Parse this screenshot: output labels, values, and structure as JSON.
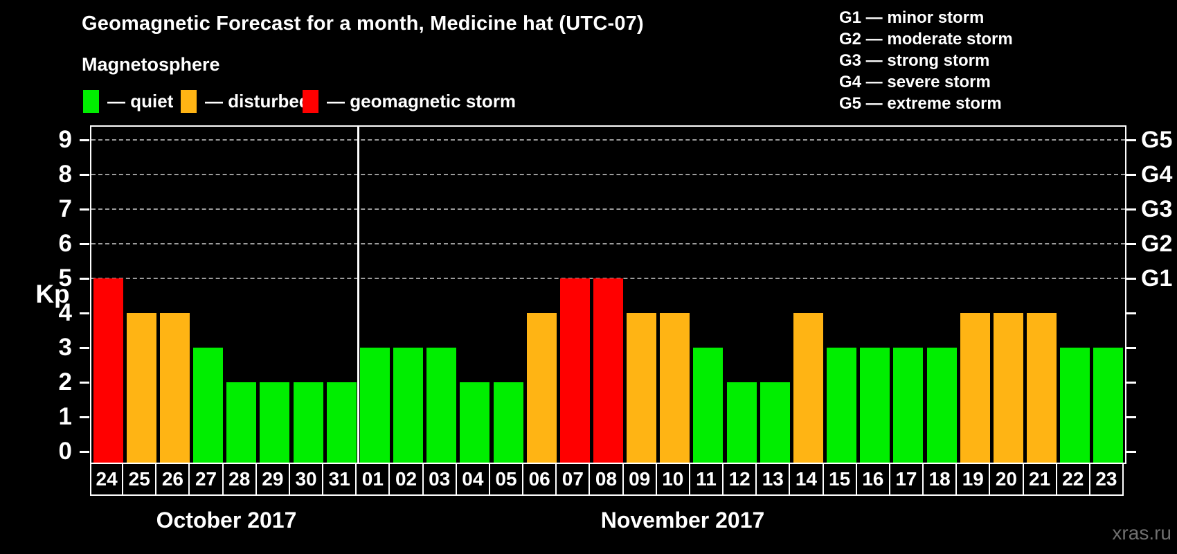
{
  "header": {
    "title": "Geomagnetic Forecast for a month, Medicine hat (UTC-07)"
  },
  "magnetosphere_legend": {
    "title": "Magnetosphere",
    "items": [
      {
        "key": "quiet",
        "label": "— quiet",
        "color": "#00ee00"
      },
      {
        "key": "disturbed",
        "label": "— disturbed",
        "color": "#ffb414"
      },
      {
        "key": "storm",
        "label": "— geomagnetic storm",
        "color": "#ff0000"
      }
    ]
  },
  "g_scale_legend": {
    "items": [
      {
        "id": "g1",
        "text": "G1 — minor storm"
      },
      {
        "id": "g2",
        "text": "G2 — moderate storm"
      },
      {
        "id": "g3",
        "text": "G3 — strong storm"
      },
      {
        "id": "g4",
        "text": "G4 — severe storm"
      },
      {
        "id": "g5",
        "text": "G5 — extreme storm"
      }
    ]
  },
  "watermark": "xras.ru",
  "chart_data": {
    "type": "bar",
    "title": "Geomagnetic Forecast for a month, Medicine hat (UTC-07)",
    "subtitle": "Magnetosphere",
    "ylabel": "Kp",
    "ylim": [
      0,
      9.4
    ],
    "yticks": [
      0,
      1,
      2,
      3,
      4,
      5,
      6,
      7,
      8,
      9
    ],
    "grid": "horizontal dashed lines at Kp 5–9 only",
    "legend_position": "top-left swatches; G-scale text top-right",
    "right_axis": [
      {
        "kp": 5,
        "label": "G1"
      },
      {
        "kp": 6,
        "label": "G2"
      },
      {
        "kp": 7,
        "label": "G3"
      },
      {
        "kp": 8,
        "label": "G4"
      },
      {
        "kp": 9,
        "label": "G5"
      }
    ],
    "months": [
      {
        "label": "October 2017",
        "days": [
          {
            "date": "24",
            "kp": 5,
            "status": "storm"
          },
          {
            "date": "25",
            "kp": 4,
            "status": "disturbed"
          },
          {
            "date": "26",
            "kp": 4,
            "status": "disturbed"
          },
          {
            "date": "27",
            "kp": 3,
            "status": "quiet"
          },
          {
            "date": "28",
            "kp": 2,
            "status": "quiet"
          },
          {
            "date": "29",
            "kp": 2,
            "status": "quiet"
          },
          {
            "date": "30",
            "kp": 2,
            "status": "quiet"
          },
          {
            "date": "31",
            "kp": 2,
            "status": "quiet"
          }
        ]
      },
      {
        "label": "November 2017",
        "days": [
          {
            "date": "01",
            "kp": 3,
            "status": "quiet"
          },
          {
            "date": "02",
            "kp": 3,
            "status": "quiet"
          },
          {
            "date": "03",
            "kp": 3,
            "status": "quiet"
          },
          {
            "date": "04",
            "kp": 2,
            "status": "quiet"
          },
          {
            "date": "05",
            "kp": 2,
            "status": "quiet"
          },
          {
            "date": "06",
            "kp": 4,
            "status": "disturbed"
          },
          {
            "date": "07",
            "kp": 5,
            "status": "storm"
          },
          {
            "date": "08",
            "kp": 5,
            "status": "storm"
          },
          {
            "date": "09",
            "kp": 4,
            "status": "disturbed"
          },
          {
            "date": "10",
            "kp": 4,
            "status": "disturbed"
          },
          {
            "date": "11",
            "kp": 3,
            "status": "quiet"
          },
          {
            "date": "12",
            "kp": 2,
            "status": "quiet"
          },
          {
            "date": "13",
            "kp": 2,
            "status": "quiet"
          },
          {
            "date": "14",
            "kp": 4,
            "status": "disturbed"
          },
          {
            "date": "15",
            "kp": 3,
            "status": "quiet"
          },
          {
            "date": "16",
            "kp": 3,
            "status": "quiet"
          },
          {
            "date": "17",
            "kp": 3,
            "status": "quiet"
          },
          {
            "date": "18",
            "kp": 3,
            "status": "quiet"
          },
          {
            "date": "19",
            "kp": 4,
            "status": "disturbed"
          },
          {
            "date": "20",
            "kp": 4,
            "status": "disturbed"
          },
          {
            "date": "21",
            "kp": 4,
            "status": "disturbed"
          },
          {
            "date": "22",
            "kp": 3,
            "status": "quiet"
          },
          {
            "date": "23",
            "kp": 3,
            "status": "quiet"
          }
        ]
      }
    ]
  }
}
